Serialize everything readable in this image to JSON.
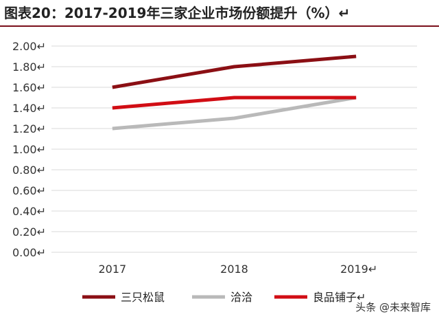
{
  "title": "图表20：2017-2019年三家企业市场份额提升（%）↵",
  "watermark": "头条 @未来智库",
  "chart_data": {
    "type": "line",
    "title": "图表20：2017-2019年三家企业市场份额提升（%）",
    "x": [
      "2017",
      "2018",
      "2019"
    ],
    "x_tick_labels": [
      "2017",
      "2018",
      "2019↵"
    ],
    "ylim": [
      0,
      2.0
    ],
    "y_ticks": [
      0,
      0.2,
      0.4,
      0.6,
      0.8,
      1.0,
      1.2,
      1.4,
      1.6,
      1.8,
      2.0
    ],
    "y_tick_labels": [
      "0.00↵",
      "0.20↵",
      "0.40↵",
      "0.60↵",
      "0.80↵",
      "1.00↵",
      "1.20↵",
      "1.40↵",
      "1.60↵",
      "1.80↵",
      "2.00↵"
    ],
    "grid": true,
    "legend_position": "bottom",
    "series": [
      {
        "name": "三只松鼠",
        "legend_label": "三只松鼠",
        "values": [
          1.6,
          1.8,
          1.9
        ],
        "color": "#8b0f14"
      },
      {
        "name": "洽洽",
        "legend_label": "洽洽",
        "values": [
          1.2,
          1.3,
          1.5
        ],
        "color": "#b9b9b9"
      },
      {
        "name": "良品铺子",
        "legend_label": "良品铺子↵",
        "values": [
          1.4,
          1.5,
          1.5
        ],
        "color": "#d10d14"
      }
    ]
  }
}
